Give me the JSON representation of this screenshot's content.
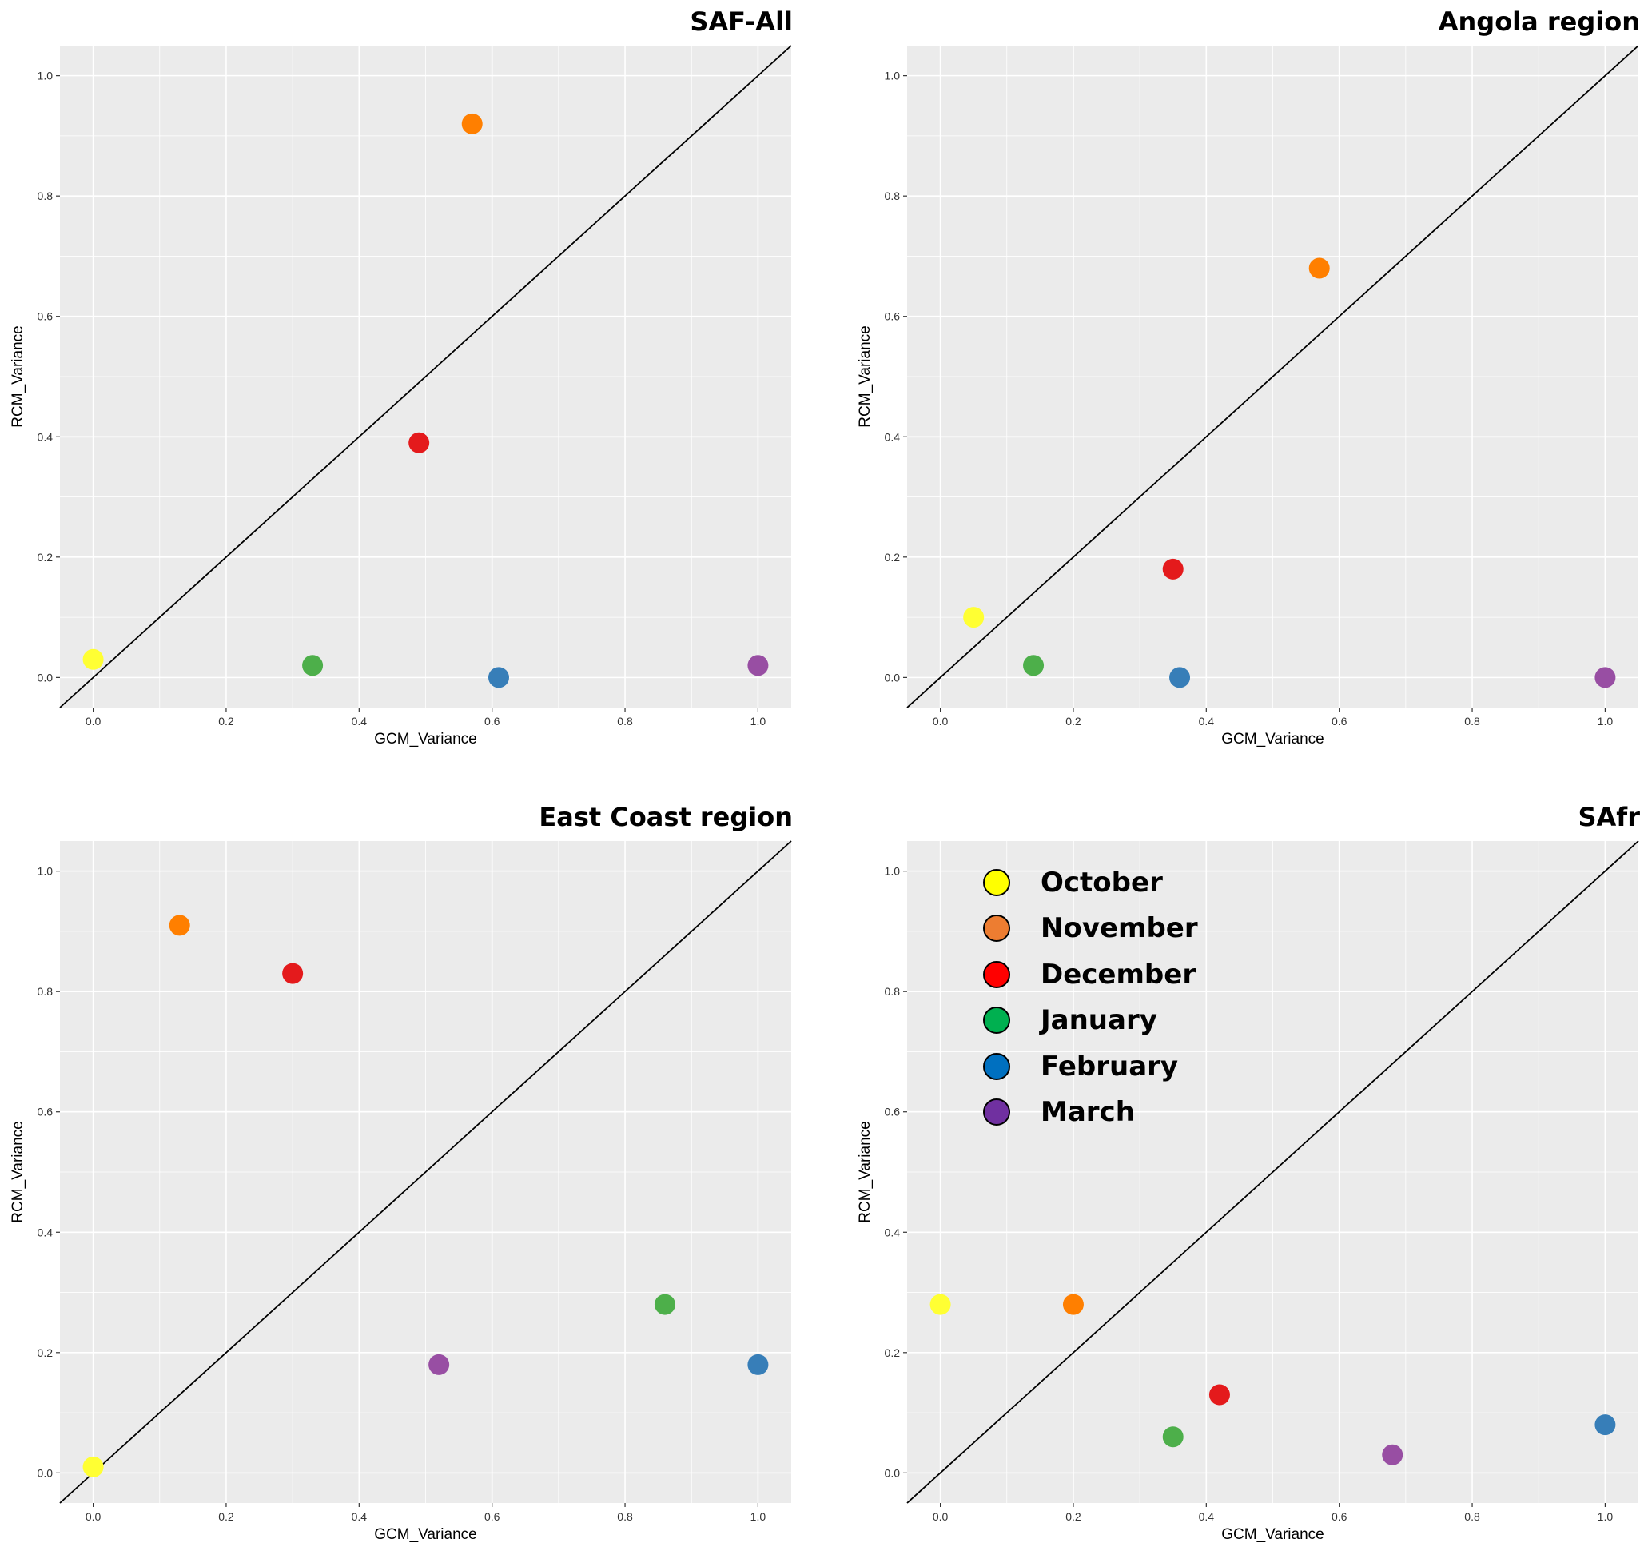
{
  "chart_data": [
    {
      "type": "scatter",
      "title": "SAF-All",
      "xlabel": "GCM_Variance",
      "ylabel": "RCM_Variance",
      "xlim": [
        -0.05,
        1.05
      ],
      "ylim": [
        -0.05,
        1.05
      ],
      "ticks": [
        "0.0",
        "0.2",
        "0.4",
        "0.6",
        "0.8",
        "1.0"
      ],
      "reference_line": "y = x",
      "points": [
        {
          "month": "October",
          "x": 0.0,
          "y": 0.03
        },
        {
          "month": "November",
          "x": 0.57,
          "y": 0.92
        },
        {
          "month": "December",
          "x": 0.49,
          "y": 0.39
        },
        {
          "month": "January",
          "x": 0.33,
          "y": 0.02
        },
        {
          "month": "February",
          "x": 0.61,
          "y": 0.0
        },
        {
          "month": "March",
          "x": 1.0,
          "y": 0.02
        }
      ]
    },
    {
      "type": "scatter",
      "title": "Angola region",
      "xlabel": "GCM_Variance",
      "ylabel": "RCM_Variance",
      "xlim": [
        -0.05,
        1.05
      ],
      "ylim": [
        -0.05,
        1.05
      ],
      "ticks": [
        "0.0",
        "0.2",
        "0.4",
        "0.6",
        "0.8",
        "1.0"
      ],
      "reference_line": "y = x",
      "points": [
        {
          "month": "October",
          "x": 0.05,
          "y": 0.1
        },
        {
          "month": "November",
          "x": 0.57,
          "y": 0.68
        },
        {
          "month": "December",
          "x": 0.35,
          "y": 0.18
        },
        {
          "month": "January",
          "x": 0.14,
          "y": 0.02
        },
        {
          "month": "February",
          "x": 0.36,
          "y": 0.0
        },
        {
          "month": "March",
          "x": 1.0,
          "y": 0.0
        }
      ]
    },
    {
      "type": "scatter",
      "title": "East Coast region",
      "xlabel": "GCM_Variance",
      "ylabel": "RCM_Variance",
      "xlim": [
        -0.05,
        1.05
      ],
      "ylim": [
        -0.05,
        1.05
      ],
      "ticks": [
        "0.0",
        "0.2",
        "0.4",
        "0.6",
        "0.8",
        "1.0"
      ],
      "reference_line": "y = x",
      "points": [
        {
          "month": "October",
          "x": 0.0,
          "y": 0.01
        },
        {
          "month": "November",
          "x": 0.13,
          "y": 0.91
        },
        {
          "month": "December",
          "x": 0.3,
          "y": 0.83
        },
        {
          "month": "January",
          "x": 0.86,
          "y": 0.28
        },
        {
          "month": "February",
          "x": 1.0,
          "y": 0.18
        },
        {
          "month": "March",
          "x": 0.52,
          "y": 0.18
        }
      ]
    },
    {
      "type": "scatter",
      "title": "SAfr",
      "xlabel": "GCM_Variance",
      "ylabel": "RCM_Variance",
      "xlim": [
        -0.05,
        1.05
      ],
      "ylim": [
        -0.05,
        1.05
      ],
      "ticks": [
        "0.0",
        "0.2",
        "0.4",
        "0.6",
        "0.8",
        "1.0"
      ],
      "reference_line": "y = x",
      "legend_position": "top-left",
      "points": [
        {
          "month": "October",
          "x": 0.0,
          "y": 0.28
        },
        {
          "month": "November",
          "x": 0.2,
          "y": 0.28
        },
        {
          "month": "December",
          "x": 0.42,
          "y": 0.13
        },
        {
          "month": "January",
          "x": 0.35,
          "y": 0.06
        },
        {
          "month": "February",
          "x": 1.0,
          "y": 0.08
        },
        {
          "month": "March",
          "x": 0.68,
          "y": 0.03
        }
      ]
    }
  ],
  "month_colors": {
    "October": "#FFFF33",
    "November": "#FF7F00",
    "December": "#E41A1C",
    "January": "#4DAF4A",
    "February": "#377EB8",
    "March": "#984EA3"
  },
  "legend": {
    "items": [
      {
        "label": "October",
        "color": "#FFFF00"
      },
      {
        "label": "November",
        "color": "#ED7D31"
      },
      {
        "label": "December",
        "color": "#FF0000"
      },
      {
        "label": "January",
        "color": "#00B050"
      },
      {
        "label": "February",
        "color": "#0070C0"
      },
      {
        "label": "March",
        "color": "#7030A0"
      }
    ]
  },
  "colors": {
    "panel_background": "#EBEBEB",
    "gridline": "#FFFFFF"
  }
}
